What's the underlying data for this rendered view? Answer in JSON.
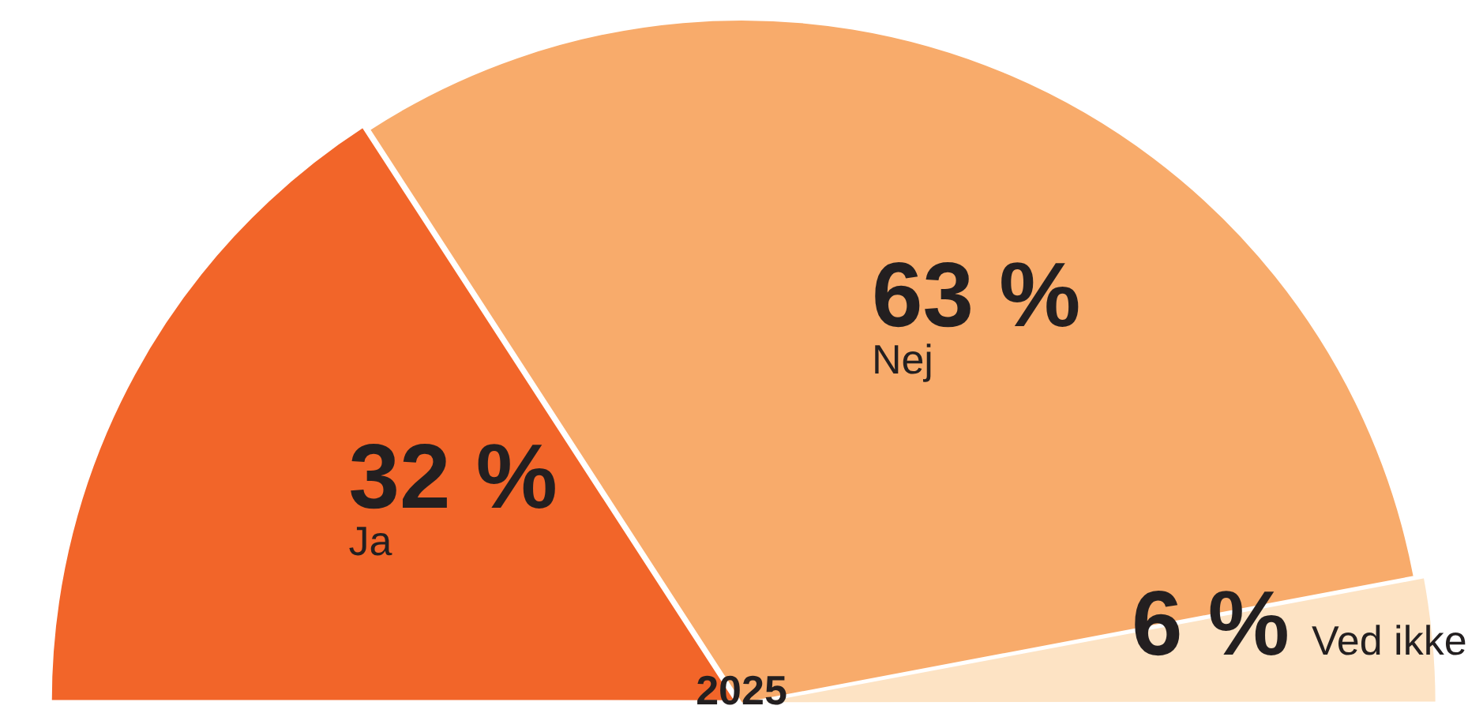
{
  "chart_data": {
    "type": "pie",
    "title": "2025",
    "categories": [
      "Ja",
      "Nej",
      "Ved ikke"
    ],
    "values": [
      32,
      63,
      6
    ],
    "colors": [
      "#f26529",
      "#f8ab6b",
      "#fde3c4"
    ],
    "value_labels": [
      "32 %",
      "63 %",
      "6 %"
    ],
    "legend": false
  }
}
